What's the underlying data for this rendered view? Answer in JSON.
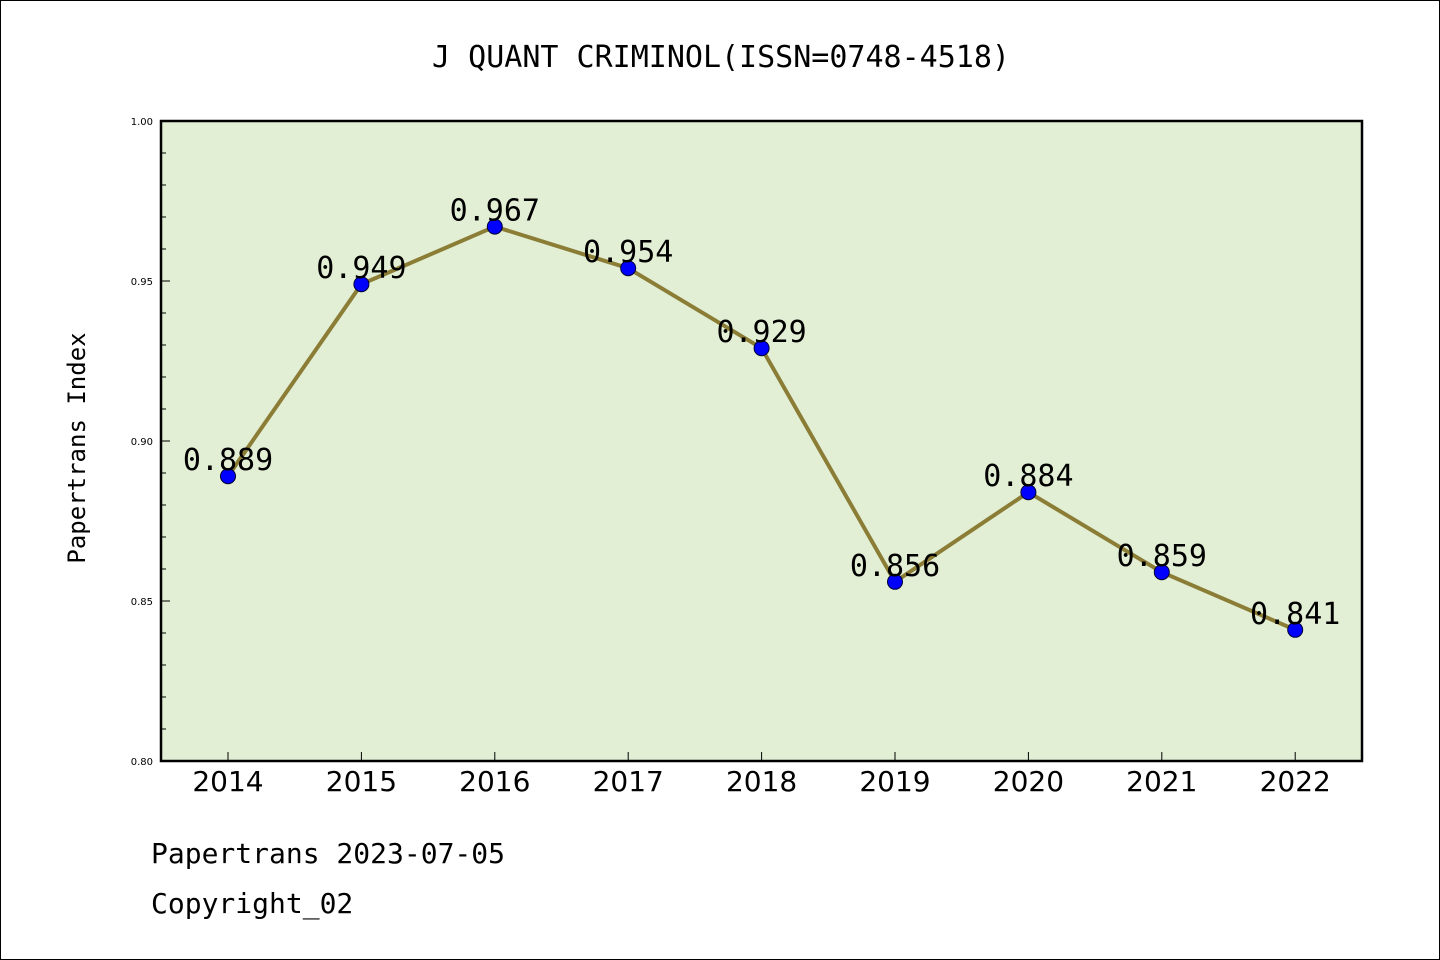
{
  "chart_data": {
    "type": "line",
    "title": "J QUANT CRIMINOL(ISSN=0748-4518)",
    "xlabel": "",
    "ylabel": "Papertrans Index",
    "categories": [
      "2014",
      "2015",
      "2016",
      "2017",
      "2018",
      "2019",
      "2020",
      "2021",
      "2022"
    ],
    "values": [
      0.889,
      0.949,
      0.967,
      0.954,
      0.929,
      0.856,
      0.884,
      0.859,
      0.841
    ],
    "data_labels": [
      "0.889",
      "0.949",
      "0.967",
      "0.954",
      "0.929",
      "0.856",
      "0.884",
      "0.859",
      "0.841"
    ],
    "ylim": [
      0.8,
      1.0
    ],
    "yticks": [
      "0.80",
      "0.85",
      "0.90",
      "0.95",
      "1.00"
    ],
    "grid": false,
    "legend": "none"
  },
  "colors": {
    "plot_background": "#e2efd5",
    "line": "#8b7d35",
    "marker": "#0000ff"
  },
  "footer": {
    "line1": "Papertrans 2023-07-05",
    "line2": "Copyright_02"
  }
}
